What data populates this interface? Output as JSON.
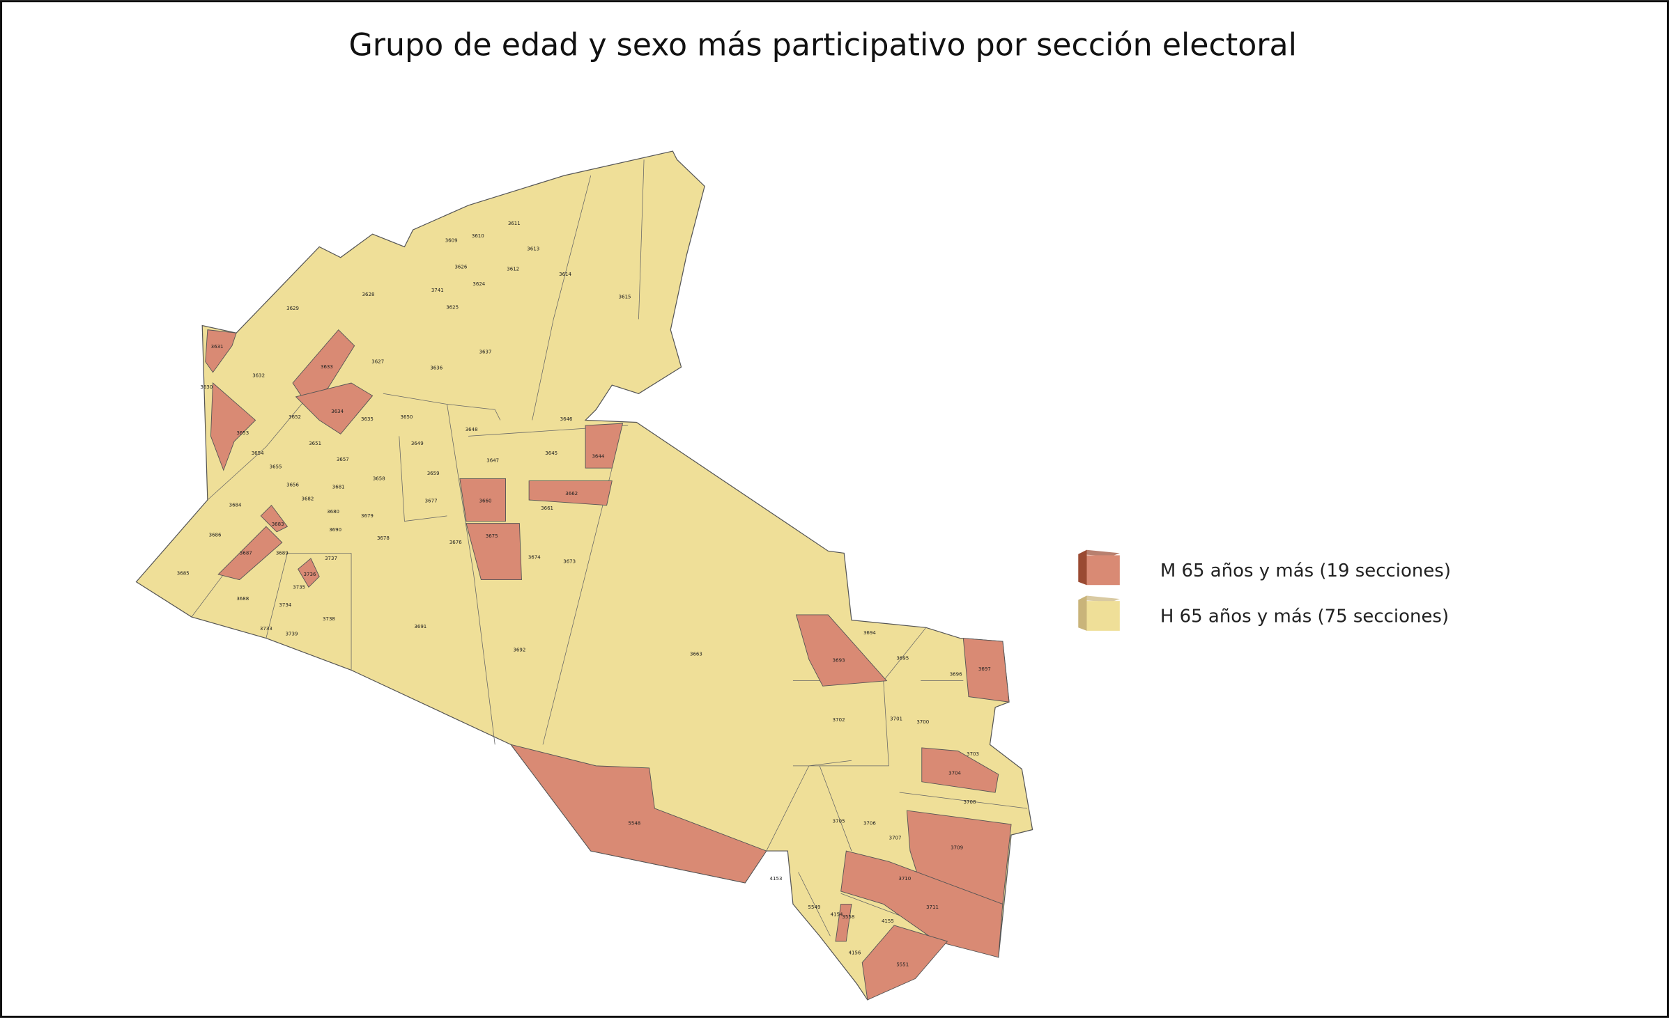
{
  "title": "Grupo de edad y sexo más participativo por sección electoral",
  "legend": {
    "items": [
      {
        "label": "M 65 años y más (19 secciones)",
        "color": "#d98a74",
        "sections": [
          "3631",
          "3633",
          "3634",
          "3653",
          "3644",
          "3662",
          "3660",
          "3675",
          "3683",
          "3687",
          "3736",
          "3693",
          "3697",
          "3704",
          "5548",
          "3709",
          "3711",
          "5551",
          "3558"
        ]
      },
      {
        "label": "H 65 años y más (75 secciones)",
        "color": "#efdf98",
        "sections": [
          "3609",
          "3610",
          "3611",
          "3613",
          "3612",
          "3614",
          "3615",
          "3626",
          "3624",
          "3741",
          "3625",
          "3628",
          "3629",
          "3637",
          "3636",
          "3627",
          "3632",
          "3630",
          "3652",
          "3635",
          "3650",
          "3646",
          "3648",
          "3649",
          "3651",
          "3654",
          "3655",
          "3657",
          "3647",
          "3645",
          "3659",
          "3658",
          "3656",
          "3681",
          "3682",
          "3680",
          "3679",
          "3677",
          "3661",
          "3684",
          "3690",
          "3678",
          "3676",
          "3686",
          "3689",
          "3737",
          "3674",
          "3673",
          "3685",
          "3735",
          "3688",
          "3734",
          "3738",
          "3733",
          "3739",
          "3691",
          "3692",
          "3663",
          "3694",
          "3695",
          "3696",
          "3702",
          "3701",
          "3700",
          "3703",
          "3708",
          "3705",
          "3706",
          "3707",
          "3710",
          "4153",
          "5549",
          "4154",
          "4155",
          "4156"
        ]
      }
    ]
  }
}
